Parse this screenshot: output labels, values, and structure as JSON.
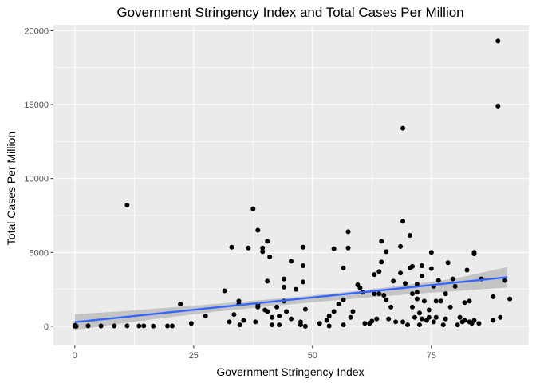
{
  "chart_data": {
    "type": "scatter",
    "title": "Government Stringency Index and Total Cases Per Million",
    "xlabel": "Government Stringency Index",
    "ylabel": "Total Cases Per Million",
    "xlim": [
      -4.5,
      95.5
    ],
    "ylim": [
      -1300,
      20400
    ],
    "x_ticks": [
      0,
      25,
      50,
      75
    ],
    "x_tick_labels": [
      "0",
      "25",
      "50",
      "75"
    ],
    "y_ticks": [
      0,
      5000,
      10000,
      15000,
      20000
    ],
    "y_tick_labels": [
      "0",
      "5000",
      "10000",
      "15000",
      "20000"
    ],
    "grid": true,
    "background": "#ebebeb",
    "point_color": "#000000",
    "trend_color": "#3366ff",
    "band_color": "#bdbdbd",
    "trend_line": {
      "x": [
        0,
        91
      ],
      "y": [
        280,
        3320
      ]
    },
    "confidence_band": {
      "x": [
        0,
        10,
        20,
        30,
        40,
        50,
        60,
        70,
        80,
        91
      ],
      "lower": [
        -250,
        200,
        620,
        1000,
        1320,
        1620,
        1900,
        2160,
        2380,
        2620
      ],
      "upper": [
        810,
        1020,
        1270,
        1520,
        1800,
        2090,
        2420,
        2800,
        3230,
        4010
      ]
    },
    "points": [
      [
        0,
        0
      ],
      [
        0,
        30
      ],
      [
        0,
        60
      ],
      [
        0.3,
        10
      ],
      [
        2.8,
        30
      ],
      [
        5.5,
        20
      ],
      [
        8.3,
        20
      ],
      [
        11,
        30
      ],
      [
        11,
        8200
      ],
      [
        13.5,
        20
      ],
      [
        14.5,
        30
      ],
      [
        16.5,
        10
      ],
      [
        19.5,
        20
      ],
      [
        20.5,
        20
      ],
      [
        22.2,
        1500
      ],
      [
        24.5,
        200
      ],
      [
        27.5,
        700
      ],
      [
        31.5,
        2400
      ],
      [
        32.5,
        300
      ],
      [
        33,
        5350
      ],
      [
        33.5,
        800
      ],
      [
        34.5,
        1700
      ],
      [
        34.5,
        1500
      ],
      [
        34.7,
        100
      ],
      [
        35.5,
        400
      ],
      [
        36.5,
        5300
      ],
      [
        37.5,
        7950
      ],
      [
        38,
        300
      ],
      [
        38.5,
        6500
      ],
      [
        38.5,
        1500
      ],
      [
        38.5,
        1300
      ],
      [
        39.5,
        5300
      ],
      [
        39.5,
        5050
      ],
      [
        40,
        1100
      ],
      [
        40.5,
        5750
      ],
      [
        40.5,
        3050
      ],
      [
        40.5,
        1000
      ],
      [
        41,
        4700
      ],
      [
        41.5,
        600
      ],
      [
        41.5,
        100
      ],
      [
        42.5,
        1300
      ],
      [
        43,
        100
      ],
      [
        43,
        700
      ],
      [
        44,
        2650
      ],
      [
        44,
        3200
      ],
      [
        44,
        1700
      ],
      [
        44.5,
        1000
      ],
      [
        45.5,
        4400
      ],
      [
        45.5,
        500
      ],
      [
        46.5,
        2500
      ],
      [
        47.5,
        100
      ],
      [
        47.5,
        300
      ],
      [
        48,
        5350
      ],
      [
        48,
        4100
      ],
      [
        48,
        3000
      ],
      [
        48.5,
        1150
      ],
      [
        48.5,
        0
      ],
      [
        51.5,
        200
      ],
      [
        53,
        400
      ],
      [
        53.5,
        20
      ],
      [
        53.5,
        700
      ],
      [
        54.5,
        5250
      ],
      [
        54.5,
        1000
      ],
      [
        55.5,
        1500
      ],
      [
        56.5,
        3950
      ],
      [
        56.5,
        1800
      ],
      [
        56.5,
        100
      ],
      [
        57.5,
        6400
      ],
      [
        57.5,
        5300
      ],
      [
        58,
        600
      ],
      [
        58.5,
        1000
      ],
      [
        59.5,
        2800
      ],
      [
        60,
        2600
      ],
      [
        60.5,
        2300
      ],
      [
        61,
        200
      ],
      [
        62,
        200
      ],
      [
        62.5,
        350
      ],
      [
        63,
        3500
      ],
      [
        63,
        2200
      ],
      [
        63.5,
        500
      ],
      [
        64,
        3700
      ],
      [
        64,
        2200
      ],
      [
        64.5,
        4350
      ],
      [
        64.5,
        5750
      ],
      [
        65,
        2100
      ],
      [
        65.5,
        5050
      ],
      [
        65.5,
        1800
      ],
      [
        66,
        500
      ],
      [
        66.5,
        1300
      ],
      [
        67,
        3050
      ],
      [
        67.5,
        300
      ],
      [
        68.5,
        5400
      ],
      [
        68.5,
        3600
      ],
      [
        69,
        13400
      ],
      [
        69,
        7100
      ],
      [
        69,
        300
      ],
      [
        69.5,
        2900
      ],
      [
        70,
        100
      ],
      [
        70.5,
        6150
      ],
      [
        70.5,
        3950
      ],
      [
        71,
        4050
      ],
      [
        71,
        2200
      ],
      [
        71,
        1300
      ],
      [
        71.5,
        600
      ],
      [
        72,
        2850
      ],
      [
        72,
        2300
      ],
      [
        72,
        1850
      ],
      [
        72.5,
        900
      ],
      [
        72.5,
        100
      ],
      [
        73,
        4100
      ],
      [
        73,
        3400
      ],
      [
        73,
        500
      ],
      [
        73.5,
        1700
      ],
      [
        74,
        400
      ],
      [
        74.5,
        1100
      ],
      [
        74.5,
        600
      ],
      [
        75,
        3900
      ],
      [
        75,
        5000
      ],
      [
        75.5,
        300
      ],
      [
        75.5,
        2700
      ],
      [
        76,
        600
      ],
      [
        76,
        1700
      ],
      [
        76.5,
        3100
      ],
      [
        77,
        1700
      ],
      [
        77.5,
        100
      ],
      [
        78,
        2200
      ],
      [
        78,
        500
      ],
      [
        78.5,
        4300
      ],
      [
        79,
        1300
      ],
      [
        79.5,
        3200
      ],
      [
        80,
        2700
      ],
      [
        80.5,
        100
      ],
      [
        81,
        600
      ],
      [
        81.5,
        300
      ],
      [
        82,
        1600
      ],
      [
        82,
        400
      ],
      [
        82.5,
        3800
      ],
      [
        83,
        1700
      ],
      [
        83,
        300
      ],
      [
        83.5,
        200
      ],
      [
        84,
        4900
      ],
      [
        84,
        5000
      ],
      [
        84,
        400
      ],
      [
        85,
        200
      ],
      [
        85.5,
        3200
      ],
      [
        88,
        400
      ],
      [
        88,
        2000
      ],
      [
        89,
        19300
      ],
      [
        89,
        14900
      ],
      [
        89.5,
        600
      ],
      [
        90.5,
        3100
      ],
      [
        91.5,
        1850
      ]
    ]
  }
}
